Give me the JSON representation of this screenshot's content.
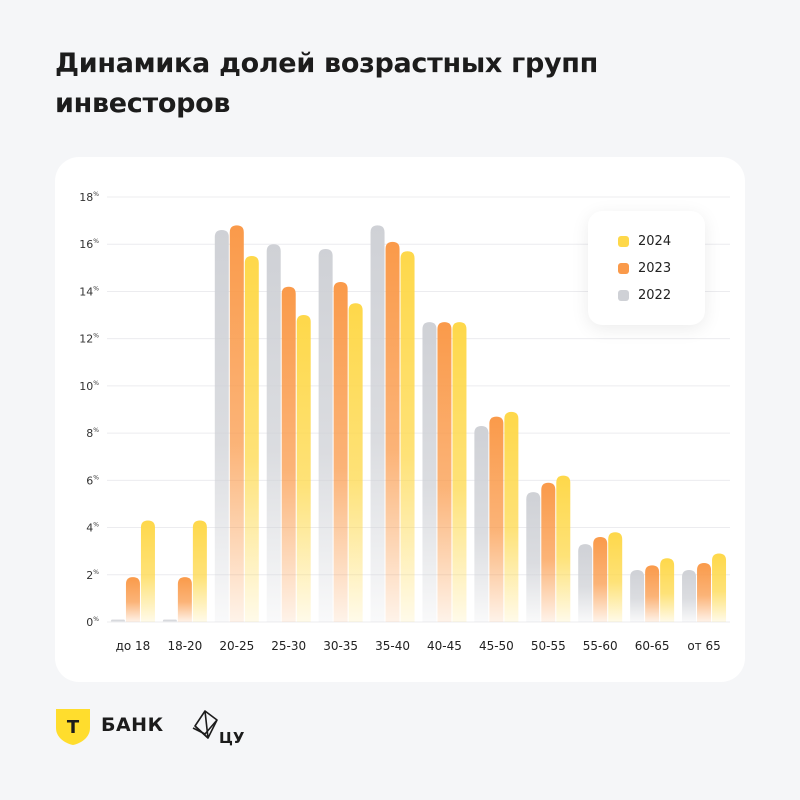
{
  "title": "Динамика долей возрастных групп инвесторов",
  "chart_data": {
    "type": "bar",
    "categories": [
      "до 18",
      "18-20",
      "20-25",
      "25-30",
      "30-35",
      "35-40",
      "40-45",
      "45-50",
      "50-55",
      "55-60",
      "60-65",
      "от 65"
    ],
    "series": [
      {
        "name": "2022",
        "color": "#cfd1d6",
        "values": [
          0.1,
          0.1,
          16.6,
          16.0,
          15.8,
          16.8,
          12.7,
          8.3,
          5.5,
          3.3,
          2.2,
          2.2
        ]
      },
      {
        "name": "2023",
        "color": "#fa9a4a",
        "values": [
          1.9,
          1.9,
          16.8,
          14.2,
          14.4,
          16.1,
          12.7,
          8.7,
          5.9,
          3.6,
          2.4,
          2.5
        ]
      },
      {
        "name": "2024",
        "color": "#fed84a",
        "values": [
          4.3,
          4.3,
          15.5,
          13.0,
          13.5,
          15.7,
          12.7,
          8.9,
          6.2,
          3.8,
          2.7,
          2.9
        ]
      }
    ],
    "yticks": [
      "0",
      "2",
      "4",
      "6",
      "8",
      "10",
      "12",
      "14",
      "16",
      "18"
    ],
    "ytick_unit": "%",
    "ylim": [
      0,
      18
    ],
    "grid": true,
    "legend_position": "top-right"
  },
  "legend": [
    {
      "label": "2024",
      "color": "#fed84a"
    },
    {
      "label": "2023",
      "color": "#fa9a4a"
    },
    {
      "label": "2022",
      "color": "#cfd1d6"
    }
  ],
  "footer": {
    "tbank_mark": "Т",
    "tbank_label": "БАНК",
    "cu_label": "ЦУ"
  }
}
